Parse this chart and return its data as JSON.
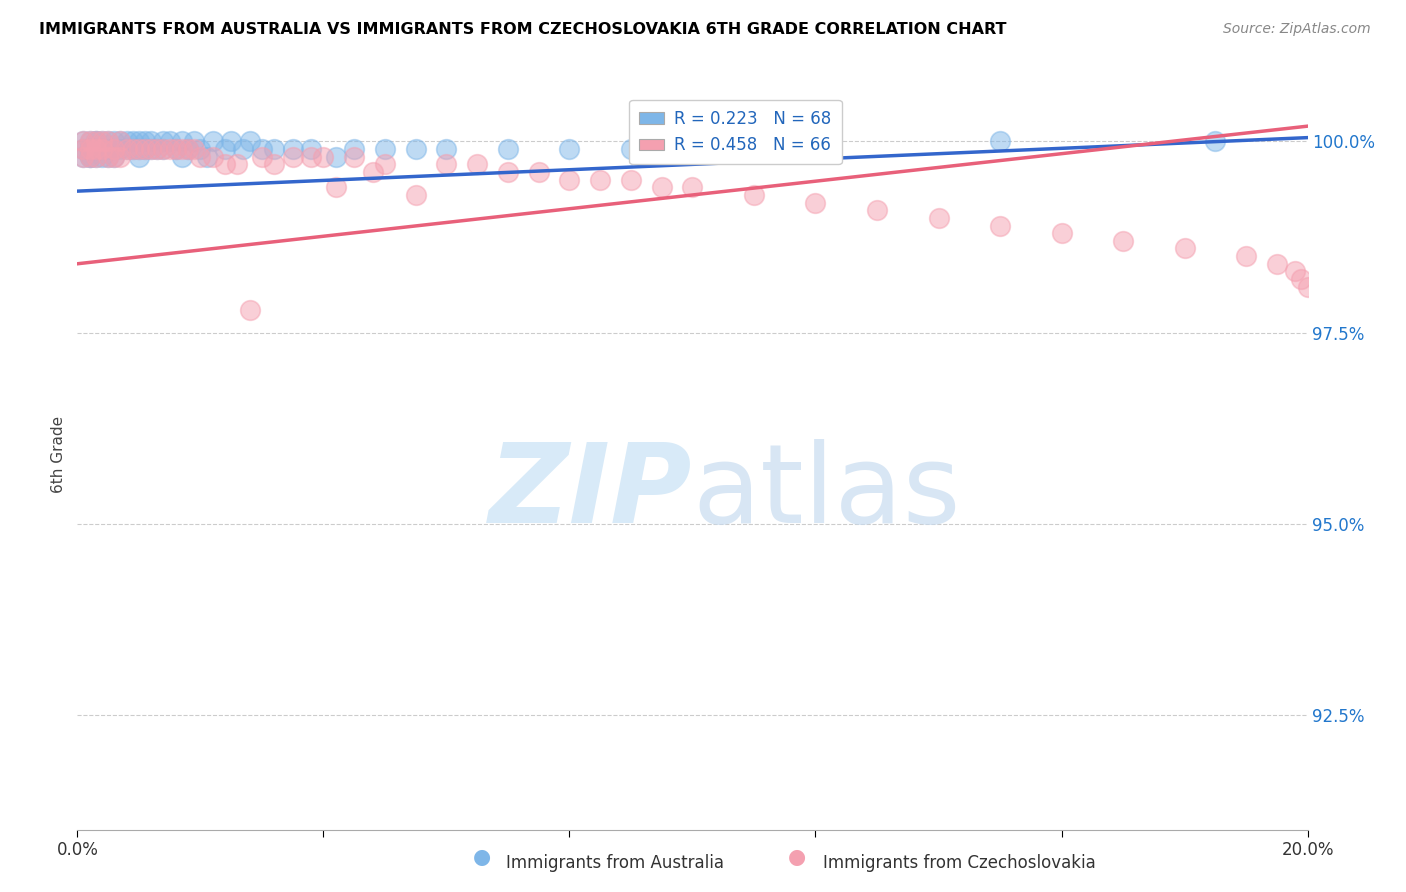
{
  "title": "IMMIGRANTS FROM AUSTRALIA VS IMMIGRANTS FROM CZECHOSLOVAKIA 6TH GRADE CORRELATION CHART",
  "source": "Source: ZipAtlas.com",
  "ylabel": "6th Grade",
  "xmin": 0.0,
  "xmax": 0.2,
  "ymin": 0.91,
  "ymax": 1.008,
  "y_ticks": [
    0.925,
    0.95,
    0.975,
    1.0
  ],
  "y_tick_labels": [
    "92.5%",
    "95.0%",
    "97.5%",
    "100.0%"
  ],
  "australia_color": "#7EB6E8",
  "czechoslovakia_color": "#F4A0B0",
  "australia_line_color": "#3366CC",
  "czechoslovakia_line_color": "#E8607A",
  "watermark_color": "#D8EAF8",
  "australia_R": 0.223,
  "australia_N": 68,
  "czechoslovakia_R": 0.458,
  "czechoslovakia_N": 66,
  "australia_x": [
    0.001,
    0.001,
    0.001,
    0.002,
    0.002,
    0.002,
    0.002,
    0.002,
    0.003,
    0.003,
    0.003,
    0.003,
    0.003,
    0.004,
    0.004,
    0.004,
    0.004,
    0.005,
    0.005,
    0.005,
    0.006,
    0.006,
    0.006,
    0.007,
    0.007,
    0.008,
    0.008,
    0.009,
    0.009,
    0.01,
    0.01,
    0.01,
    0.011,
    0.011,
    0.012,
    0.012,
    0.013,
    0.014,
    0.014,
    0.015,
    0.016,
    0.017,
    0.017,
    0.018,
    0.019,
    0.02,
    0.021,
    0.022,
    0.024,
    0.025,
    0.027,
    0.028,
    0.03,
    0.032,
    0.035,
    0.038,
    0.042,
    0.045,
    0.05,
    0.055,
    0.06,
    0.07,
    0.08,
    0.09,
    0.1,
    0.12,
    0.15,
    0.185
  ],
  "australia_y": [
    1.0,
    0.999,
    0.998,
    1.0,
    0.999,
    0.999,
    0.998,
    0.998,
    1.0,
    1.0,
    0.999,
    0.999,
    0.998,
    1.0,
    0.999,
    0.999,
    0.998,
    1.0,
    0.999,
    0.998,
    1.0,
    0.999,
    0.998,
    1.0,
    0.999,
    1.0,
    0.999,
    1.0,
    0.999,
    1.0,
    0.999,
    0.998,
    1.0,
    0.999,
    1.0,
    0.999,
    0.999,
    1.0,
    0.999,
    1.0,
    0.999,
    1.0,
    0.998,
    0.999,
    1.0,
    0.999,
    0.998,
    1.0,
    0.999,
    1.0,
    0.999,
    1.0,
    0.999,
    0.999,
    0.999,
    0.999,
    0.998,
    0.999,
    0.999,
    0.999,
    0.999,
    0.999,
    0.999,
    0.999,
    0.999,
    0.999,
    1.0,
    1.0
  ],
  "czechoslovakia_x": [
    0.001,
    0.001,
    0.001,
    0.002,
    0.002,
    0.002,
    0.003,
    0.003,
    0.003,
    0.004,
    0.004,
    0.005,
    0.005,
    0.006,
    0.006,
    0.007,
    0.007,
    0.008,
    0.009,
    0.01,
    0.011,
    0.012,
    0.013,
    0.014,
    0.015,
    0.016,
    0.017,
    0.018,
    0.019,
    0.02,
    0.022,
    0.024,
    0.026,
    0.028,
    0.03,
    0.032,
    0.035,
    0.038,
    0.04,
    0.042,
    0.045,
    0.048,
    0.05,
    0.055,
    0.06,
    0.065,
    0.07,
    0.075,
    0.08,
    0.085,
    0.09,
    0.095,
    0.1,
    0.11,
    0.12,
    0.13,
    0.14,
    0.15,
    0.16,
    0.17,
    0.18,
    0.19,
    0.195,
    0.198,
    0.199,
    0.2
  ],
  "czechoslovakia_y": [
    1.0,
    0.999,
    0.998,
    1.0,
    0.999,
    0.998,
    1.0,
    0.999,
    0.998,
    1.0,
    0.999,
    1.0,
    0.998,
    0.999,
    0.998,
    1.0,
    0.998,
    0.999,
    0.999,
    0.999,
    0.999,
    0.999,
    0.999,
    0.999,
    0.999,
    0.999,
    0.999,
    0.999,
    0.999,
    0.998,
    0.998,
    0.997,
    0.997,
    0.978,
    0.998,
    0.997,
    0.998,
    0.998,
    0.998,
    0.994,
    0.998,
    0.996,
    0.997,
    0.993,
    0.997,
    0.997,
    0.996,
    0.996,
    0.995,
    0.995,
    0.995,
    0.994,
    0.994,
    0.993,
    0.992,
    0.991,
    0.99,
    0.989,
    0.988,
    0.987,
    0.986,
    0.985,
    0.984,
    0.983,
    0.982,
    0.981
  ]
}
